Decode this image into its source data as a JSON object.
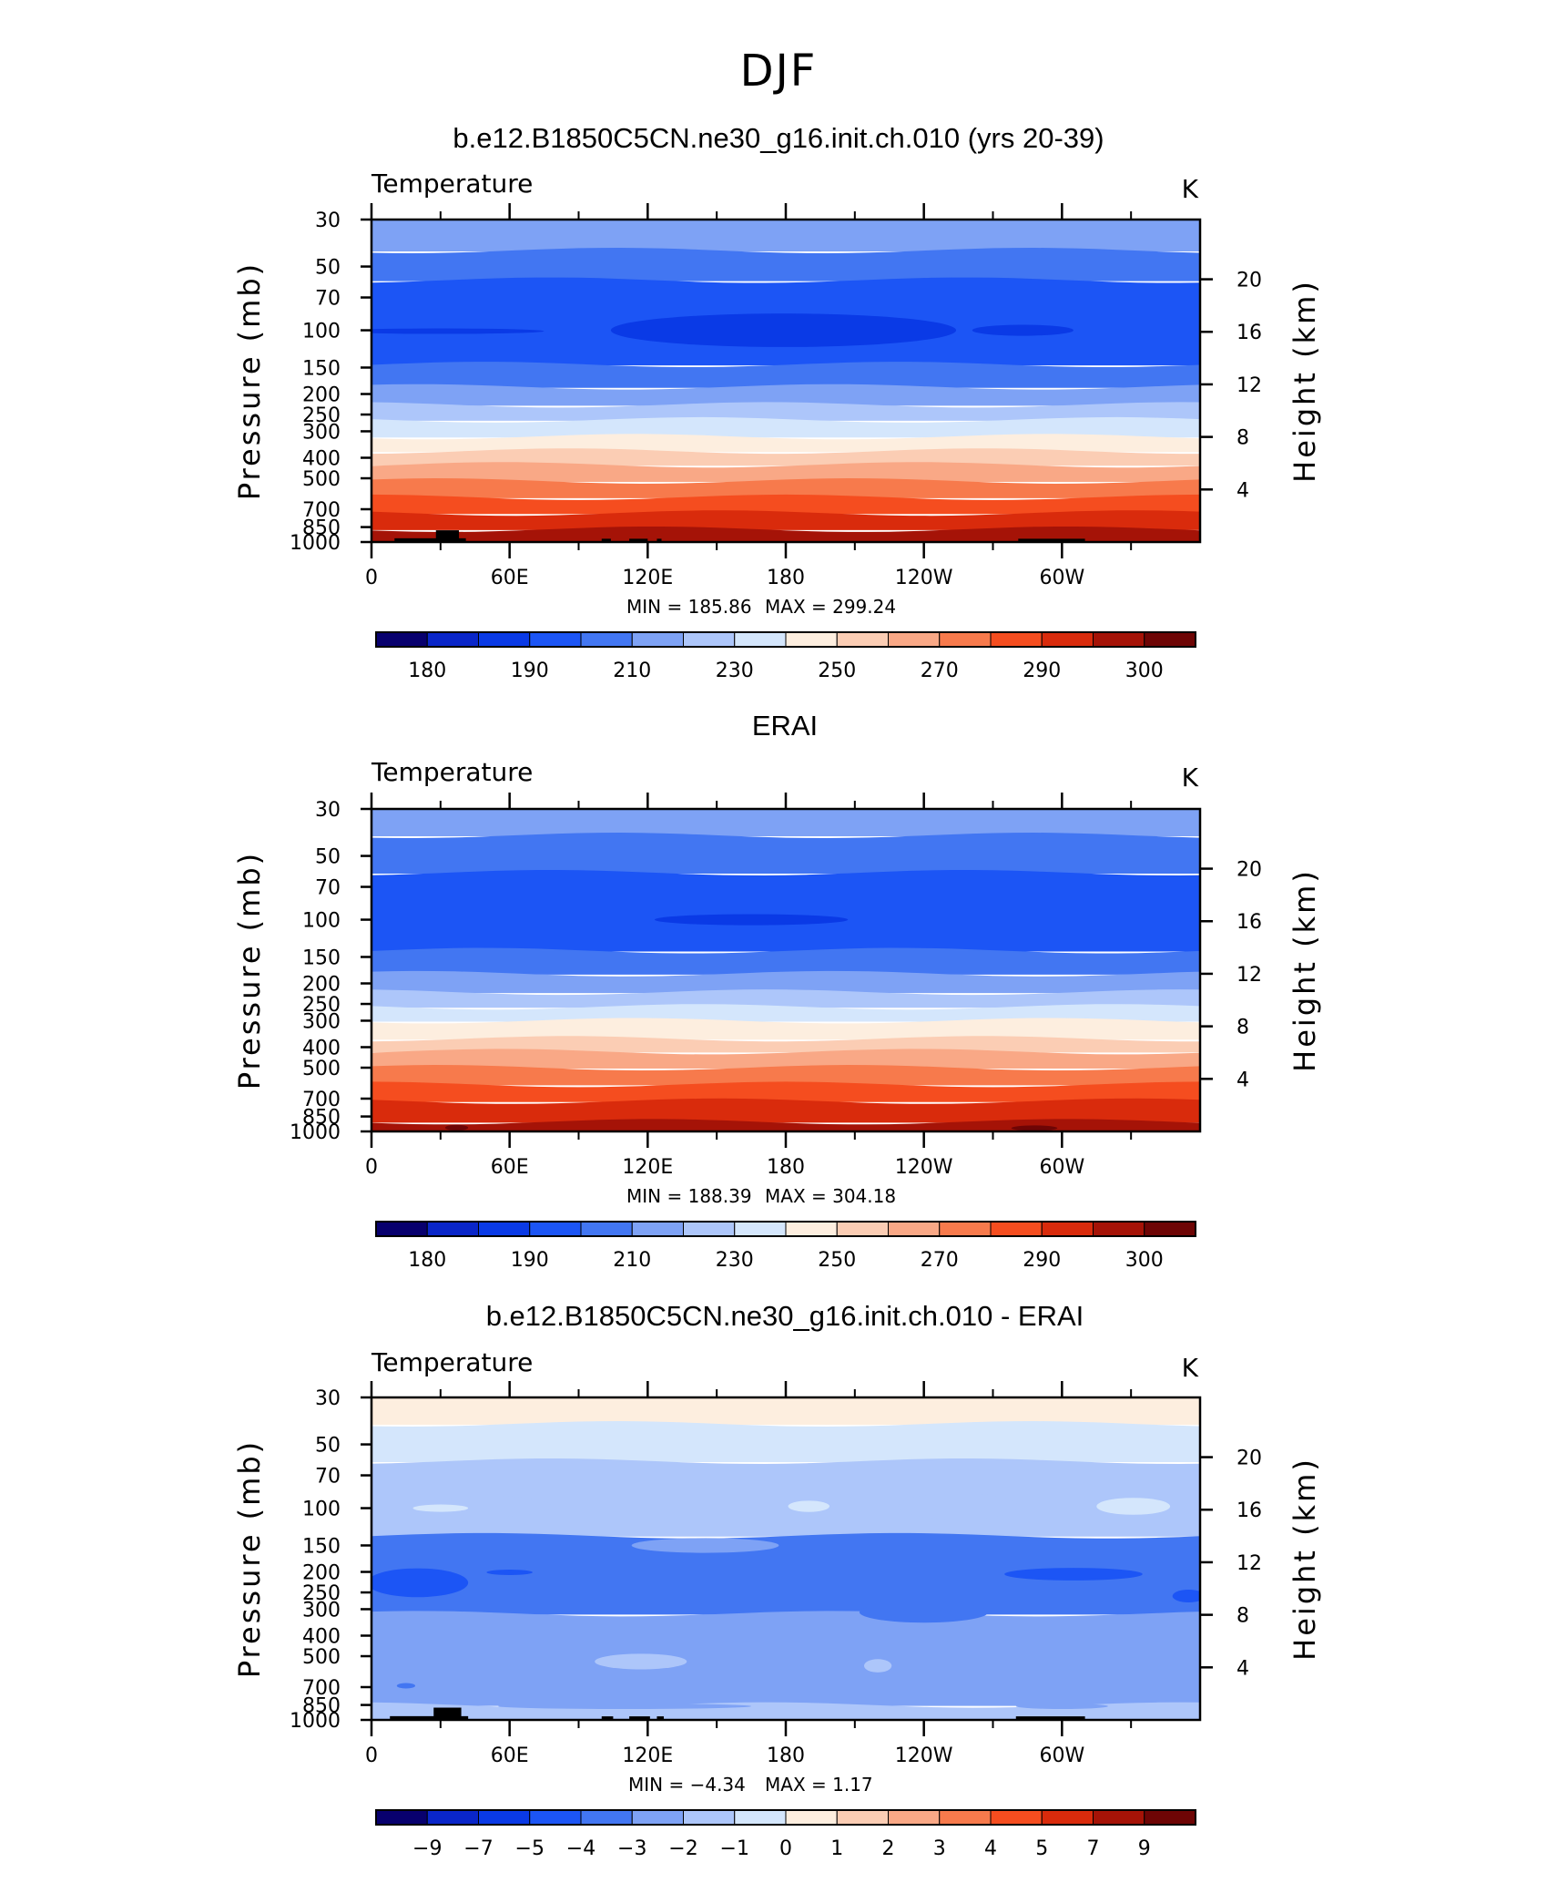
{
  "figure": {
    "title": "DJF"
  },
  "colors": {
    "scale": [
      "#08006e",
      "#0a26c9",
      "#0a3ae6",
      "#1c55f5",
      "#4276f2",
      "#7ea2f5",
      "#adc6fa",
      "#d4e6fc",
      "#fdeedf",
      "#fbcdb4",
      "#f9a886",
      "#f77a4c",
      "#f54d1f",
      "#d92b0c",
      "#a51307",
      "#6e0505"
    ],
    "land": "#000000"
  },
  "chart_data": [
    {
      "type": "contour",
      "title": "b.e12.B1850C5CN.ne30_g16.init.ch.010 (yrs 20-39)",
      "left_string": "Temperature",
      "right_string": "K",
      "ylabel": "Pressure (mb)",
      "ylabel_right": "Height (km)",
      "x_ticks": [
        "0",
        "60E",
        "120E",
        "180",
        "120W",
        "60W"
      ],
      "x_tick_values": [
        0,
        60,
        120,
        180,
        240,
        300
      ],
      "xlim": [
        0,
        360
      ],
      "y_ticks": [
        "30",
        "50",
        "70",
        "100",
        "150",
        "200",
        "250",
        "300",
        "400",
        "500",
        "700",
        "850",
        "1000"
      ],
      "y_tick_values": [
        30,
        50,
        70,
        100,
        150,
        200,
        250,
        300,
        400,
        500,
        700,
        850,
        1000
      ],
      "ylim": [
        1000,
        30
      ],
      "height_ticks": [
        "20",
        "16",
        "12",
        "8",
        "4"
      ],
      "height_tick_values": [
        20,
        16,
        12,
        8,
        4
      ],
      "min_label": "MIN  =  185.86",
      "max_label": "MAX  =  299.24",
      "colorbar_labels": [
        "180",
        "190",
        "210",
        "230",
        "250",
        "270",
        "290",
        "300"
      ],
      "bands": [
        {
          "from": 30,
          "to": 42,
          "color_index": 5
        },
        {
          "from": 42,
          "to": 58,
          "color_index": 4
        },
        {
          "from": 58,
          "to": 145,
          "color_index": 3
        },
        {
          "from": 145,
          "to": 185,
          "color_index": 4
        },
        {
          "from": 185,
          "to": 225,
          "color_index": 5
        },
        {
          "from": 225,
          "to": 265,
          "color_index": 6
        },
        {
          "from": 265,
          "to": 318,
          "color_index": 7
        },
        {
          "from": 318,
          "to": 372,
          "color_index": 8
        },
        {
          "from": 372,
          "to": 432,
          "color_index": 9
        },
        {
          "from": 432,
          "to": 515,
          "color_index": 10
        },
        {
          "from": 515,
          "to": 615,
          "color_index": 11
        },
        {
          "from": 615,
          "to": 730,
          "color_index": 12
        },
        {
          "from": 730,
          "to": 870,
          "color_index": 13
        },
        {
          "from": 870,
          "to": 1000,
          "color_index": 14
        }
      ],
      "blobs": [
        {
          "lon": 179,
          "p": 100,
          "dlon": 75,
          "hp": 18,
          "color_index": 2
        },
        {
          "lon": 283,
          "p": 100,
          "dlon": 22,
          "hp": 6,
          "color_index": 2
        },
        {
          "lon": 30,
          "p": 101,
          "dlon": 45,
          "hp": 2,
          "color_index": 2
        }
      ],
      "land": [
        {
          "lon0": 10,
          "lon1": 41,
          "p0": 960,
          "p1": 1000
        },
        {
          "lon0": 28,
          "lon1": 38,
          "p0": 880,
          "p1": 1000
        },
        {
          "lon0": 100,
          "lon1": 104,
          "p0": 965,
          "p1": 1000
        },
        {
          "lon0": 112,
          "lon1": 120,
          "p0": 965,
          "p1": 1000
        },
        {
          "lon0": 124,
          "lon1": 126,
          "p0": 965,
          "p1": 1000
        },
        {
          "lon0": 281,
          "lon1": 310,
          "p0": 965,
          "p1": 1000
        }
      ]
    },
    {
      "type": "contour",
      "title": "ERAI",
      "left_string": "Temperature",
      "right_string": "K",
      "ylabel": "Pressure (mb)",
      "ylabel_right": "Height (km)",
      "x_ticks": [
        "0",
        "60E",
        "120E",
        "180",
        "120W",
        "60W"
      ],
      "x_tick_values": [
        0,
        60,
        120,
        180,
        240,
        300
      ],
      "xlim": [
        0,
        360
      ],
      "y_ticks": [
        "30",
        "50",
        "70",
        "100",
        "150",
        "200",
        "250",
        "300",
        "400",
        "500",
        "700",
        "850",
        "1000"
      ],
      "y_tick_values": [
        30,
        50,
        70,
        100,
        150,
        200,
        250,
        300,
        400,
        500,
        700,
        850,
        1000
      ],
      "ylim": [
        1000,
        30
      ],
      "height_ticks": [
        "20",
        "16",
        "12",
        "8",
        "4"
      ],
      "height_tick_values": [
        20,
        16,
        12,
        8,
        4
      ],
      "min_label": "MIN  =  188.39",
      "max_label": "MAX  =  304.18",
      "colorbar_labels": [
        "180",
        "190",
        "210",
        "230",
        "250",
        "270",
        "290",
        "300"
      ],
      "bands": [
        {
          "from": 30,
          "to": 40,
          "color_index": 5
        },
        {
          "from": 40,
          "to": 60,
          "color_index": 4
        },
        {
          "from": 60,
          "to": 140,
          "color_index": 3
        },
        {
          "from": 140,
          "to": 180,
          "color_index": 4
        },
        {
          "from": 180,
          "to": 220,
          "color_index": 5
        },
        {
          "from": 220,
          "to": 258,
          "color_index": 6
        },
        {
          "from": 258,
          "to": 300,
          "color_index": 7
        },
        {
          "from": 300,
          "to": 365,
          "color_index": 8
        },
        {
          "from": 365,
          "to": 420,
          "color_index": 9
        },
        {
          "from": 420,
          "to": 500,
          "color_index": 10
        },
        {
          "from": 500,
          "to": 600,
          "color_index": 11
        },
        {
          "from": 600,
          "to": 720,
          "color_index": 12
        },
        {
          "from": 720,
          "to": 900,
          "color_index": 13
        },
        {
          "from": 900,
          "to": 1000,
          "color_index": 14
        }
      ],
      "blobs": [
        {
          "lon": 165,
          "p": 100,
          "dlon": 42,
          "hp": 6,
          "color_index": 2
        },
        {
          "lon": 37,
          "p": 960,
          "dlon": 5,
          "hp": 30,
          "color_index": 15
        },
        {
          "lon": 288,
          "p": 965,
          "dlon": 10,
          "hp": 25,
          "color_index": 15
        }
      ],
      "land": []
    },
    {
      "type": "contour",
      "title": "b.e12.B1850C5CN.ne30_g16.init.ch.010 - ERAI",
      "left_string": "Temperature",
      "right_string": "K",
      "ylabel": "Pressure (mb)",
      "ylabel_right": "Height (km)",
      "x_ticks": [
        "0",
        "60E",
        "120E",
        "180",
        "120W",
        "60W"
      ],
      "x_tick_values": [
        0,
        60,
        120,
        180,
        240,
        300
      ],
      "xlim": [
        0,
        360
      ],
      "y_ticks": [
        "30",
        "50",
        "70",
        "100",
        "150",
        "200",
        "250",
        "300",
        "400",
        "500",
        "700",
        "850",
        "1000"
      ],
      "y_tick_values": [
        30,
        50,
        70,
        100,
        150,
        200,
        250,
        300,
        400,
        500,
        700,
        850,
        1000
      ],
      "ylim": [
        1000,
        30
      ],
      "height_ticks": [
        "20",
        "16",
        "12",
        "8",
        "4"
      ],
      "height_tick_values": [
        20,
        16,
        12,
        8,
        4
      ],
      "min_label": "MIN  =     −4.34",
      "max_label": "MAX  =      1.17",
      "colorbar_labels": [
        "−9",
        "−7",
        "−5",
        "−4",
        "−3",
        "−2",
        "−1",
        "0",
        "1",
        "2",
        "3",
        "4",
        "5",
        "7",
        "9"
      ],
      "bands": [
        {
          "from": 30,
          "to": 40,
          "color_index": 8
        },
        {
          "from": 40,
          "to": 60,
          "color_index": 7
        },
        {
          "from": 60,
          "to": 135,
          "color_index": 6
        },
        {
          "from": 135,
          "to": 315,
          "color_index": 4
        },
        {
          "from": 315,
          "to": 850,
          "color_index": 5
        },
        {
          "from": 850,
          "to": 1000,
          "color_index": 6
        }
      ],
      "blobs": [
        {
          "lon": 240,
          "p": 310,
          "dlon": 28,
          "hp": 35,
          "color_index": 4
        },
        {
          "lon": 20,
          "p": 225,
          "dlon": 22,
          "hp": 35,
          "color_index": 3
        },
        {
          "lon": 305,
          "p": 205,
          "dlon": 30,
          "hp": 14,
          "color_index": 3
        },
        {
          "lon": 60,
          "p": 201,
          "dlon": 10,
          "hp": 5,
          "color_index": 3
        },
        {
          "lon": 355,
          "p": 260,
          "dlon": 7,
          "hp": 18,
          "color_index": 3
        },
        {
          "lon": 255,
          "p": 98,
          "dlon": 26,
          "hp": 14,
          "color_index": 6
        },
        {
          "lon": 52,
          "p": 98,
          "dlon": 26,
          "hp": 11,
          "color_index": 6
        },
        {
          "lon": 145,
          "p": 150,
          "dlon": 32,
          "hp": 12,
          "color_index": 5
        },
        {
          "lon": 331,
          "p": 98,
          "dlon": 16,
          "hp": 9,
          "color_index": 7
        },
        {
          "lon": 190,
          "p": 98,
          "dlon": 9,
          "hp": 6,
          "color_index": 7
        },
        {
          "lon": 30,
          "p": 100,
          "dlon": 12,
          "hp": 4,
          "color_index": 7
        },
        {
          "lon": 117,
          "p": 530,
          "dlon": 20,
          "hp": 45,
          "color_index": 6
        },
        {
          "lon": 220,
          "p": 555,
          "dlon": 6,
          "hp": 40,
          "color_index": 6
        },
        {
          "lon": 15,
          "p": 690,
          "dlon": 4,
          "hp": 14,
          "color_index": 4
        },
        {
          "lon": 110,
          "p": 862,
          "dlon": 55,
          "hp": 22,
          "color_index": 5
        },
        {
          "lon": 300,
          "p": 862,
          "dlon": 20,
          "hp": 18,
          "color_index": 5
        }
      ],
      "land": [
        {
          "lon0": 8,
          "lon1": 42,
          "p0": 960,
          "p1": 1000
        },
        {
          "lon0": 27,
          "lon1": 39,
          "p0": 875,
          "p1": 1000
        },
        {
          "lon0": 100,
          "lon1": 105,
          "p0": 962,
          "p1": 1000
        },
        {
          "lon0": 112,
          "lon1": 121,
          "p0": 962,
          "p1": 1000
        },
        {
          "lon0": 124,
          "lon1": 127,
          "p0": 962,
          "p1": 1000
        },
        {
          "lon0": 280,
          "lon1": 310,
          "p0": 962,
          "p1": 1000
        }
      ]
    }
  ]
}
